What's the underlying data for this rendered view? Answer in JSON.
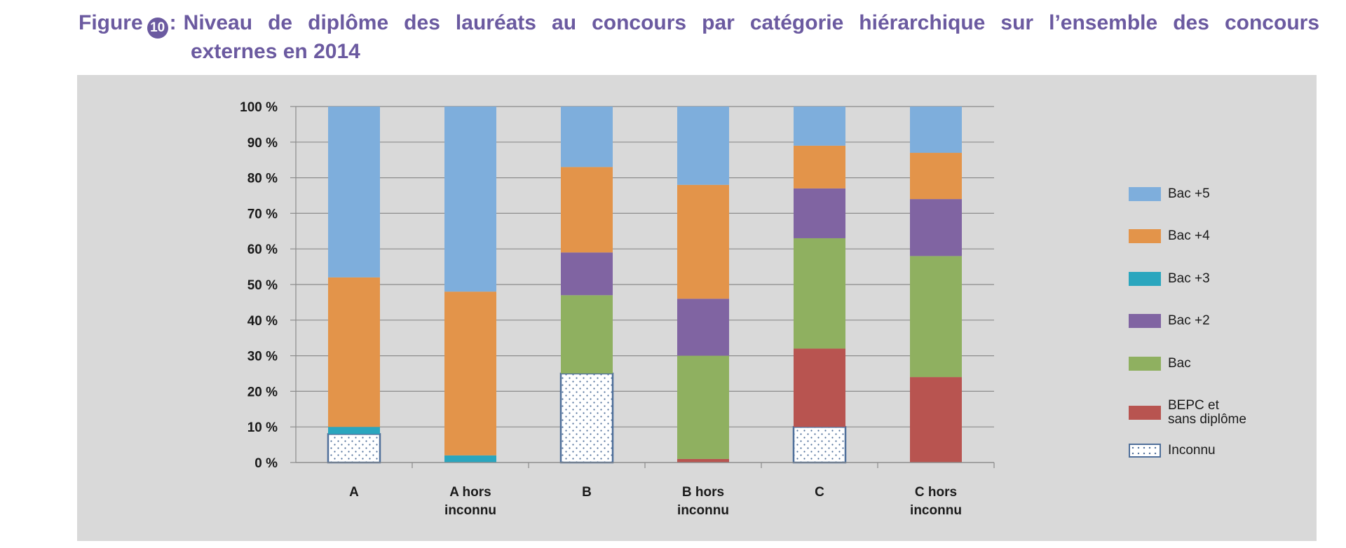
{
  "figure": {
    "label": "Figure",
    "number": "10",
    "colon": ":",
    "title_line1": "Niveau de diplôme des lauréats au concours par catégorie hiérarchique sur l’ensemble des concours",
    "title_line2": "externes en 2014"
  },
  "chart_data": {
    "type": "bar",
    "stacked": true,
    "categories": [
      "A",
      "A hors\ninconnu",
      "B",
      "B hors\ninconnu",
      "C",
      "C hors\ninconnu"
    ],
    "ylim": [
      0,
      100
    ],
    "yticks": [
      "0 %",
      "10 %",
      "20 %",
      "30 %",
      "40 %",
      "50 %",
      "60 %",
      "70 %",
      "80 %",
      "90 %",
      "100 %"
    ],
    "grid": true,
    "legend_position": "right",
    "series": [
      {
        "name": "Inconnu",
        "color": "#ffffff",
        "pattern": "dots",
        "values": [
          8,
          0,
          25,
          0,
          10,
          0
        ]
      },
      {
        "name": "BEPC et\nsans diplôme",
        "color": "#b85450",
        "values": [
          0,
          0,
          0,
          1,
          22,
          24
        ]
      },
      {
        "name": "Bac",
        "color": "#8fb060",
        "values": [
          0,
          0,
          22,
          29,
          31,
          34
        ]
      },
      {
        "name": "Bac +2",
        "color": "#8064a2",
        "values": [
          0,
          0,
          12,
          16,
          14,
          16
        ]
      },
      {
        "name": "Bac +3",
        "color": "#2aa6be",
        "values": [
          2,
          2,
          0,
          0,
          0,
          0
        ]
      },
      {
        "name": "Bac +4",
        "color": "#e3944a",
        "values": [
          42,
          46,
          24,
          32,
          12,
          13
        ]
      },
      {
        "name": "Bac +5",
        "color": "#7eaedc",
        "values": [
          48,
          52,
          17,
          22,
          11,
          13
        ]
      }
    ],
    "legend_order": [
      "Bac +5",
      "Bac +4",
      "Bac +3",
      "Bac +2",
      "Bac",
      "BEPC et\nsans diplôme",
      "Inconnu"
    ]
  }
}
